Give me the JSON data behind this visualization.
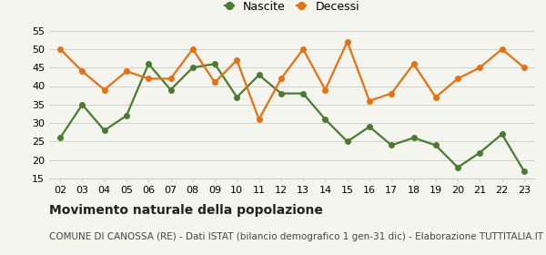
{
  "years": [
    "02",
    "03",
    "04",
    "05",
    "06",
    "07",
    "08",
    "09",
    "10",
    "11",
    "12",
    "13",
    "14",
    "15",
    "16",
    "17",
    "18",
    "19",
    "20",
    "21",
    "22",
    "23"
  ],
  "nascite": [
    26,
    35,
    28,
    32,
    46,
    39,
    45,
    46,
    37,
    43,
    38,
    38,
    31,
    25,
    29,
    24,
    26,
    24,
    18,
    22,
    27,
    17
  ],
  "decessi": [
    50,
    44,
    39,
    44,
    42,
    42,
    50,
    41,
    47,
    31,
    42,
    50,
    39,
    52,
    36,
    38,
    46,
    37,
    42,
    45,
    50,
    45
  ],
  "nascite_color": "#4a7c2f",
  "decessi_color": "#e87010",
  "background_color": "#f5f5f0",
  "grid_color": "#cccccc",
  "ylim": [
    15,
    55
  ],
  "yticks": [
    15,
    20,
    25,
    30,
    35,
    40,
    45,
    50,
    55
  ],
  "title": "Movimento naturale della popolazione",
  "subtitle": "COMUNE DI CANOSSA (RE) - Dati ISTAT (bilancio demografico 1 gen-31 dic) - Elaborazione TUTTITALIA.IT",
  "legend_nascite": "Nascite",
  "legend_decessi": "Decessi",
  "title_fontsize": 10,
  "subtitle_fontsize": 7.5,
  "legend_fontsize": 9,
  "axis_fontsize": 8,
  "marker_size": 4,
  "line_width": 1.6
}
